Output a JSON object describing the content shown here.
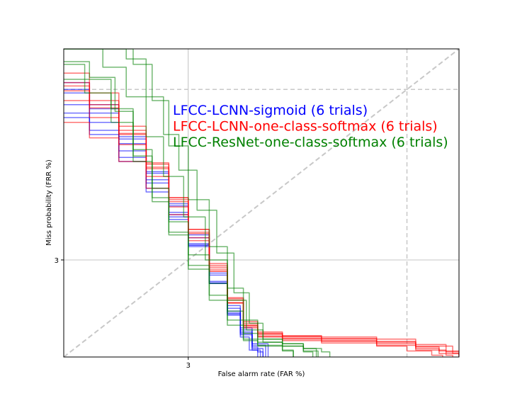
{
  "chart_data": {
    "type": "line",
    "title": "",
    "xlabel": "False alarm rate (FAR %)",
    "ylabel": "Miss probability (FRR %)",
    "xlim": [
      1.2,
      22
    ],
    "ylim": [
      1.2,
      22
    ],
    "x_ticks": [
      3
    ],
    "y_ticks": [
      3
    ],
    "x_tick_labels": [
      "3"
    ],
    "y_tick_labels": [
      "3"
    ],
    "grid": true,
    "diagonal_reference": true,
    "legend_placement": "top-center",
    "series": [
      {
        "name": "LFCC-LCNN-sigmoid (6 trials)",
        "color": "#0000ff",
        "curves": [
          [
            [
              1.2,
              15.0
            ],
            [
              1.45,
              12.5
            ],
            [
              1.8,
              9.4
            ],
            [
              2.2,
              6.8
            ],
            [
              2.6,
              5.0
            ],
            [
              3.0,
              3.7
            ],
            [
              3.5,
              2.6
            ],
            [
              4.0,
              1.9
            ],
            [
              4.4,
              1.55
            ],
            [
              4.8,
              1.32
            ],
            [
              5.0,
              1.26
            ],
            [
              5.2,
              1.2
            ]
          ],
          [
            [
              1.2,
              14.5
            ],
            [
              1.45,
              12.0
            ],
            [
              1.8,
              9.0
            ],
            [
              2.2,
              6.4
            ],
            [
              2.6,
              4.7
            ],
            [
              3.0,
              3.5
            ],
            [
              3.5,
              2.45
            ],
            [
              4.0,
              1.8
            ],
            [
              4.4,
              1.48
            ],
            [
              4.8,
              1.28
            ],
            [
              5.1,
              1.2
            ]
          ],
          [
            [
              1.2,
              11.5
            ],
            [
              1.45,
              9.8
            ],
            [
              1.8,
              7.6
            ],
            [
              2.2,
              5.7
            ],
            [
              2.6,
              4.4
            ],
            [
              3.0,
              3.4
            ],
            [
              3.5,
              2.4
            ],
            [
              4.0,
              1.82
            ],
            [
              4.4,
              1.52
            ],
            [
              4.8,
              1.34
            ],
            [
              5.3,
              1.2
            ]
          ],
          [
            [
              1.2,
              16.0
            ],
            [
              1.45,
              13.0
            ],
            [
              1.8,
              9.6
            ],
            [
              2.2,
              6.9
            ],
            [
              2.6,
              5.1
            ],
            [
              3.0,
              3.8
            ],
            [
              3.5,
              2.65
            ],
            [
              4.0,
              1.95
            ],
            [
              4.4,
              1.58
            ],
            [
              4.8,
              1.36
            ],
            [
              5.4,
              1.2
            ]
          ],
          [
            [
              1.2,
              13.0
            ],
            [
              1.45,
              11.0
            ],
            [
              1.8,
              8.4
            ],
            [
              2.2,
              6.2
            ],
            [
              2.6,
              4.6
            ],
            [
              3.0,
              3.45
            ],
            [
              3.5,
              2.42
            ],
            [
              4.0,
              1.78
            ],
            [
              4.4,
              1.45
            ],
            [
              4.7,
              1.28
            ],
            [
              5.0,
              1.2
            ]
          ],
          [
            [
              1.2,
              12.0
            ],
            [
              1.45,
              10.2
            ],
            [
              1.8,
              7.9
            ],
            [
              2.2,
              5.9
            ],
            [
              2.6,
              4.5
            ],
            [
              3.0,
              3.45
            ],
            [
              3.5,
              2.4
            ],
            [
              4.0,
              1.85
            ],
            [
              4.4,
              1.5
            ],
            [
              4.8,
              1.3
            ],
            [
              5.2,
              1.2
            ]
          ]
        ]
      },
      {
        "name": "LFCC-LCNN-one-class-softmax (6 trials)",
        "color": "#ff0000",
        "curves": [
          [
            [
              1.2,
              16.0
            ],
            [
              1.45,
              13.5
            ],
            [
              1.8,
              10.2
            ],
            [
              2.2,
              7.4
            ],
            [
              2.6,
              5.3
            ],
            [
              3.0,
              3.9
            ],
            [
              3.5,
              2.8
            ],
            [
              4.0,
              2.05
            ],
            [
              4.5,
              1.62
            ],
            [
              5.0,
              1.48
            ],
            [
              6.0,
              1.43
            ],
            [
              8.0,
              1.4
            ],
            [
              12.0,
              1.36
            ],
            [
              16.0,
              1.3
            ],
            [
              19.0,
              1.24
            ],
            [
              22.0,
              1.2
            ]
          ],
          [
            [
              1.2,
              14.8
            ],
            [
              1.45,
              12.6
            ],
            [
              1.8,
              9.8
            ],
            [
              2.2,
              7.2
            ],
            [
              2.6,
              5.4
            ],
            [
              3.0,
              4.0
            ],
            [
              3.5,
              2.9
            ],
            [
              4.0,
              2.1
            ],
            [
              4.5,
              1.68
            ],
            [
              5.0,
              1.52
            ],
            [
              6.0,
              1.47
            ],
            [
              8.0,
              1.45
            ],
            [
              12.0,
              1.42
            ],
            [
              16.0,
              1.35
            ],
            [
              20.0,
              1.26
            ],
            [
              22.0,
              1.22
            ]
          ],
          [
            [
              1.2,
              15.5
            ],
            [
              1.45,
              13.0
            ],
            [
              1.8,
              9.9
            ],
            [
              2.2,
              7.1
            ],
            [
              2.6,
              5.2
            ],
            [
              3.0,
              3.85
            ],
            [
              3.5,
              2.75
            ],
            [
              4.0,
              2.0
            ],
            [
              4.5,
              1.58
            ],
            [
              5.0,
              1.45
            ],
            [
              6.0,
              1.4
            ],
            [
              8.0,
              1.37
            ],
            [
              12.0,
              1.33
            ],
            [
              15.0,
              1.27
            ],
            [
              18.0,
              1.22
            ],
            [
              19.5,
              1.2
            ]
          ],
          [
            [
              1.2,
              11.0
            ],
            [
              1.45,
              9.5
            ],
            [
              1.8,
              7.6
            ],
            [
              2.2,
              5.9
            ],
            [
              2.6,
              4.6
            ],
            [
              3.0,
              3.6
            ],
            [
              3.5,
              2.7
            ],
            [
              4.0,
              2.0
            ],
            [
              4.5,
              1.62
            ],
            [
              5.0,
              1.5
            ],
            [
              6.0,
              1.46
            ],
            [
              8.0,
              1.43
            ],
            [
              12.0,
              1.39
            ],
            [
              16.0,
              1.33
            ],
            [
              21.0,
              1.24
            ],
            [
              22.0,
              1.22
            ]
          ],
          [
            [
              1.2,
              13.5
            ],
            [
              1.45,
              11.5
            ],
            [
              1.8,
              8.9
            ],
            [
              2.2,
              6.6
            ],
            [
              2.6,
              4.95
            ],
            [
              3.0,
              3.7
            ],
            [
              3.5,
              2.7
            ],
            [
              4.0,
              2.0
            ],
            [
              4.5,
              1.6
            ],
            [
              5.0,
              1.46
            ],
            [
              6.0,
              1.42
            ],
            [
              8.0,
              1.39
            ],
            [
              12.0,
              1.34
            ],
            [
              16.0,
              1.28
            ],
            [
              20.0,
              1.22
            ],
            [
              21.0,
              1.2
            ]
          ],
          [
            [
              1.2,
              17.5
            ],
            [
              1.45,
              14.5
            ],
            [
              1.8,
              10.6
            ],
            [
              2.2,
              7.5
            ],
            [
              2.6,
              5.4
            ],
            [
              3.0,
              4.0
            ],
            [
              3.5,
              2.85
            ],
            [
              4.0,
              2.08
            ],
            [
              4.5,
              1.65
            ],
            [
              5.0,
              1.5
            ],
            [
              6.0,
              1.45
            ],
            [
              8.0,
              1.42
            ],
            [
              12.0,
              1.38
            ],
            [
              16.0,
              1.32
            ],
            [
              19.0,
              1.27
            ],
            [
              22.0,
              1.21
            ]
          ]
        ]
      },
      {
        "name": "LFCC-ResNet-one-class-softmax (6 trials)",
        "color": "#008000",
        "curves": [
          [
            [
              1.2,
              22.0
            ],
            [
              1.5,
              22.0
            ],
            [
              1.75,
              22.0
            ],
            [
              2.0,
              19.0
            ],
            [
              2.3,
              13.5
            ],
            [
              2.6,
              8.8
            ],
            [
              3.0,
              5.3
            ],
            [
              3.5,
              3.4
            ],
            [
              4.0,
              2.3
            ],
            [
              4.5,
              1.7
            ],
            [
              5.0,
              1.42
            ],
            [
              6.0,
              1.36
            ],
            [
              7.0,
              1.3
            ],
            [
              7.7,
              1.2
            ]
          ],
          [
            [
              1.2,
              22.0
            ],
            [
              1.7,
              22.0
            ],
            [
              1.9,
              20.0
            ],
            [
              2.2,
              14.0
            ],
            [
              2.5,
              9.8
            ],
            [
              2.8,
              7.0
            ],
            [
              3.2,
              4.8
            ],
            [
              3.7,
              3.2
            ],
            [
              4.2,
              2.2
            ],
            [
              4.7,
              1.65
            ],
            [
              5.2,
              1.42
            ],
            [
              6.0,
              1.36
            ],
            [
              7.0,
              1.3
            ],
            [
              8.0,
              1.26
            ],
            [
              8.5,
              1.2
            ]
          ],
          [
            [
              1.2,
              19.0
            ],
            [
              1.4,
              16.5
            ],
            [
              1.7,
              12.5
            ],
            [
              2.0,
              8.5
            ],
            [
              2.3,
              5.9
            ],
            [
              2.6,
              4.3
            ],
            [
              3.0,
              3.15
            ],
            [
              3.5,
              2.4
            ],
            [
              4.0,
              1.85
            ],
            [
              4.5,
              1.5
            ],
            [
              5.0,
              1.38
            ],
            [
              6.0,
              1.33
            ],
            [
              7.0,
              1.26
            ],
            [
              7.5,
              1.2
            ]
          ],
          [
            [
              1.2,
              16.5
            ],
            [
              1.4,
              14.5
            ],
            [
              1.7,
              11.0
            ],
            [
              2.0,
              7.6
            ],
            [
              2.3,
              5.2
            ],
            [
              2.6,
              3.8
            ],
            [
              3.0,
              2.85
            ],
            [
              3.5,
              2.15
            ],
            [
              4.0,
              1.7
            ],
            [
              4.5,
              1.42
            ],
            [
              5.0,
              1.34
            ],
            [
              6.0,
              1.28
            ],
            [
              6.5,
              1.2
            ]
          ],
          [
            [
              1.2,
              22.0
            ],
            [
              1.35,
              22.0
            ],
            [
              1.6,
              18.5
            ],
            [
              1.9,
              14.0
            ],
            [
              2.2,
              9.6
            ],
            [
              2.5,
              6.6
            ],
            [
              2.9,
              4.5
            ],
            [
              3.4,
              3.0
            ],
            [
              4.0,
              2.05
            ],
            [
              4.6,
              1.55
            ],
            [
              5.2,
              1.38
            ],
            [
              6.0,
              1.33
            ],
            [
              7.0,
              1.27
            ],
            [
              7.8,
              1.2
            ]
          ],
          [
            [
              1.2,
              19.5
            ],
            [
              1.45,
              16.8
            ],
            [
              1.75,
              12.2
            ],
            [
              2.0,
              8.0
            ],
            [
              2.3,
              5.4
            ],
            [
              2.6,
              3.9
            ],
            [
              3.0,
              2.75
            ],
            [
              3.5,
              2.05
            ],
            [
              4.0,
              1.62
            ],
            [
              4.5,
              1.4
            ],
            [
              5.0,
              1.33
            ],
            [
              6.0,
              1.27
            ],
            [
              6.5,
              1.2
            ]
          ]
        ]
      }
    ]
  }
}
